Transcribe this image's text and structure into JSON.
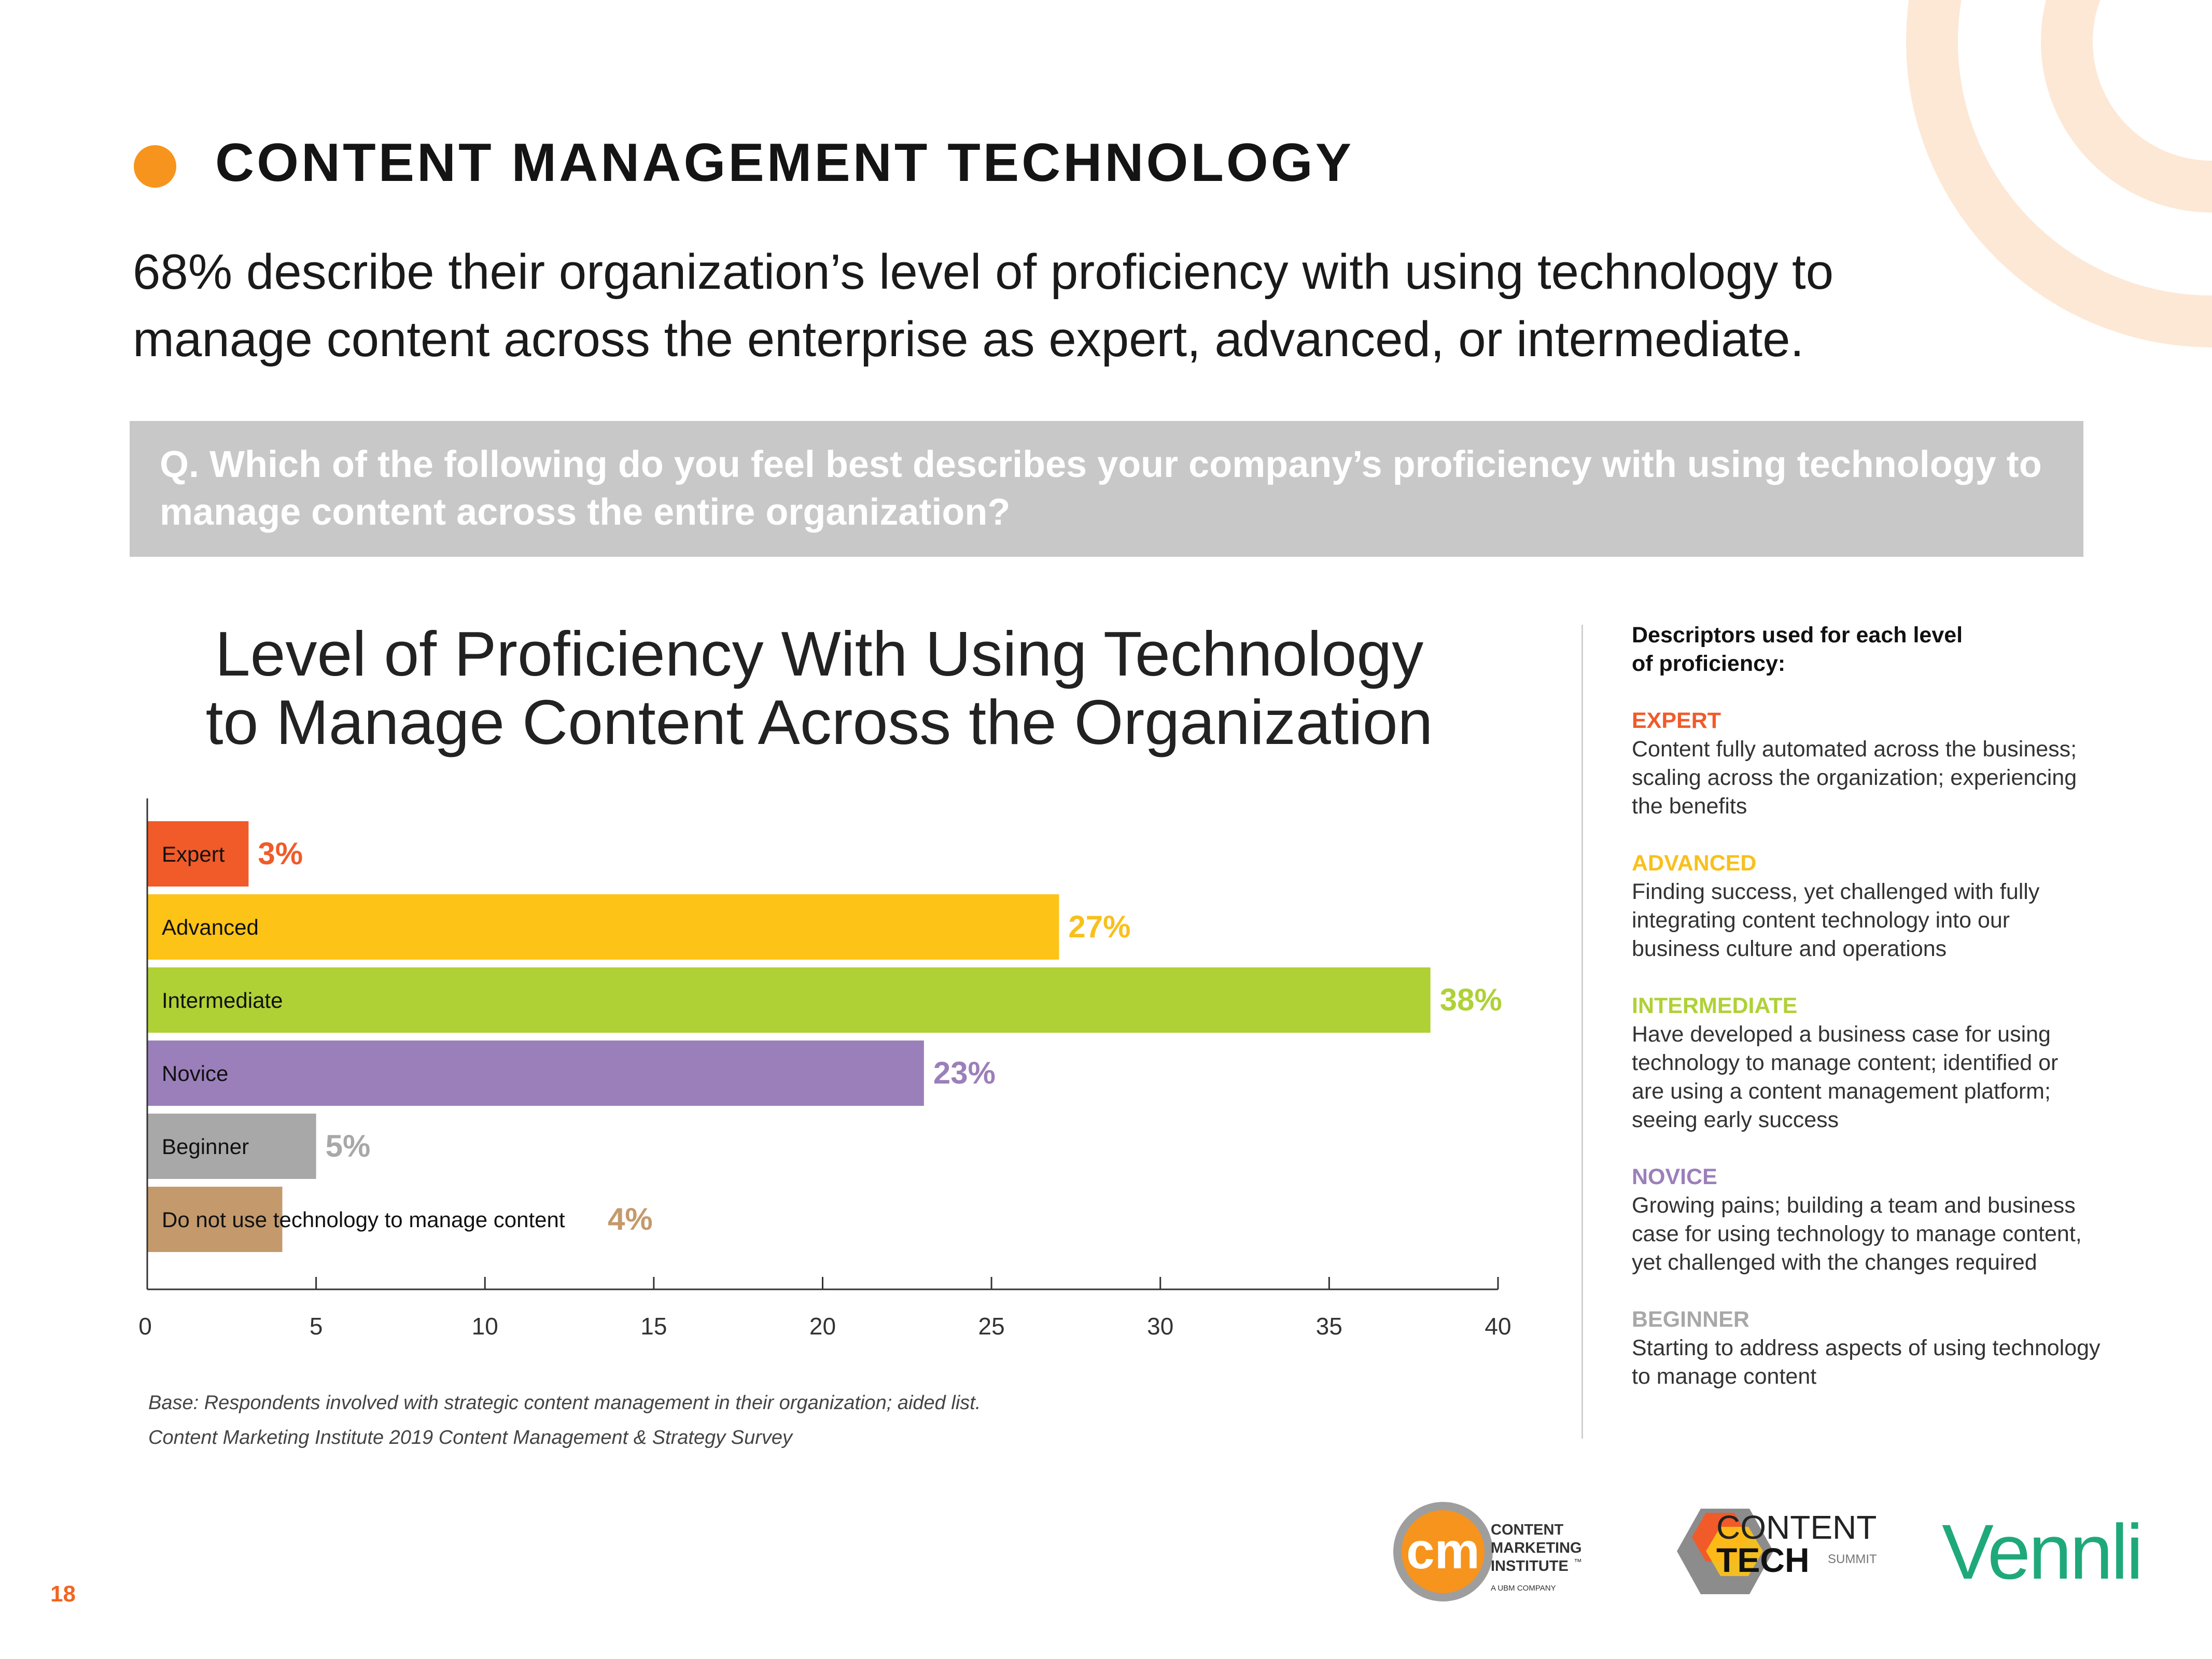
{
  "section_title": "CONTENT MANAGEMENT TECHNOLOGY",
  "headline_line1": "68% describe their organization’s level of proficiency with using technology to",
  "headline_line2": "manage content across the enterprise as expert, advanced, or intermediate.",
  "question_line1": "Q. Which of the following do you feel best describes your company’s proficiency with using technology to",
  "question_line2": "manage content across the entire organization?",
  "chart_data": {
    "type": "bar",
    "orientation": "horizontal",
    "title_line1": "Level of Proficiency With Using Technology",
    "title_line2": "to Manage Content Across the Organization",
    "categories": [
      "Expert",
      "Advanced",
      "Intermediate",
      "Novice",
      "Beginner",
      "Do not use technology to manage content"
    ],
    "values": [
      3,
      27,
      38,
      23,
      5,
      4
    ],
    "value_labels": [
      "3%",
      "27%",
      "38%",
      "23%",
      "5%",
      "4%"
    ],
    "colors": [
      "#f15a29",
      "#fdc316",
      "#afd136",
      "#9b7fba",
      "#a8a8a9",
      "#c49a6c"
    ],
    "label_colors": [
      "#f15a29",
      "#f8c01c",
      "#afd136",
      "#9b7fba",
      "#a8a8a9",
      "#c49a6c"
    ],
    "xlim": [
      0,
      40
    ],
    "xticks": [
      0,
      5,
      10,
      15,
      20,
      25,
      30,
      35,
      40
    ],
    "xlabel": "",
    "ylabel": "",
    "grid": false
  },
  "base_note": "Base: Respondents involved with strategic content management in their organization; aided list.",
  "source_note": "Content Marketing Institute 2019 Content Management & Strategy Survey",
  "descriptors": {
    "heading_line1": "Descriptors used for each level",
    "heading_line2": "of proficiency:",
    "levels": [
      {
        "name": "EXPERT",
        "color": "#f15a29",
        "lines": [
          "Content fully automated across the business;",
          "scaling across the organization; experiencing",
          "the benefits"
        ]
      },
      {
        "name": "ADVANCED",
        "color": "#f8c01c",
        "lines": [
          "Finding success, yet challenged with fully",
          "integrating content technology into our",
          "business culture and operations"
        ]
      },
      {
        "name": "INTERMEDIATE",
        "color": "#afd136",
        "lines": [
          "Have developed a business case for using",
          "technology to manage content; identified or",
          "are using a content management platform;",
          "seeing early success"
        ]
      },
      {
        "name": "NOVICE",
        "color": "#9b7fba",
        "lines": [
          "Growing pains; building a team and business",
          "case for using technology to manage content,",
          "yet challenged with the changes required"
        ]
      },
      {
        "name": "BEGINNER",
        "color": "#a8a8a9",
        "lines": [
          "Starting to address aspects of using technology",
          "to manage content"
        ]
      }
    ]
  },
  "logos": {
    "cmi_mark": "cm",
    "cmi_line1": "CONTENT",
    "cmi_line2": "MARKETING",
    "cmi_line3": "INSTITUTE",
    "cmi_tm": "™",
    "cmi_sub": "A UBM COMPANY",
    "cts_line1": "CONTENT",
    "cts_line2": "TECH",
    "cts_line3": "SUMMIT",
    "vennli": "Vennli"
  },
  "page_number": "18",
  "colors": {
    "accent": "#f7941d",
    "page_number": "#f26522",
    "question_box": "#c8c8c8",
    "vennli": "#1fa97a",
    "deco_arc": "#fde8d6"
  }
}
